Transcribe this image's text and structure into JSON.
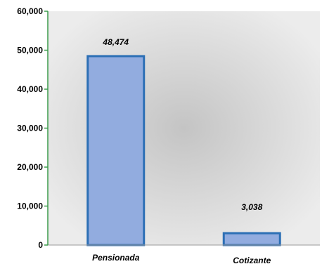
{
  "chart_data": {
    "type": "bar",
    "categories": [
      "Pensionada",
      "Cotizante"
    ],
    "values": [
      48474,
      3038
    ],
    "value_labels": [
      "48,474",
      "3,038"
    ],
    "y_ticks": [
      0,
      10000,
      20000,
      30000,
      40000,
      50000,
      60000
    ],
    "y_tick_labels": [
      "0",
      "10,000",
      "20,000",
      "30,000",
      "40,000",
      "50,000",
      "60,000"
    ],
    "ylim": [
      0,
      60000
    ],
    "grid": false,
    "legend": "none",
    "colors": {
      "bar_fill": "#92acdf",
      "bar_stroke": "#2c6fb5",
      "y_axis": "#3a9a4a",
      "x_axis": "#9a9a9a",
      "plot_bg_center": "#c4c4c4",
      "plot_bg_edge": "#ececec"
    }
  }
}
